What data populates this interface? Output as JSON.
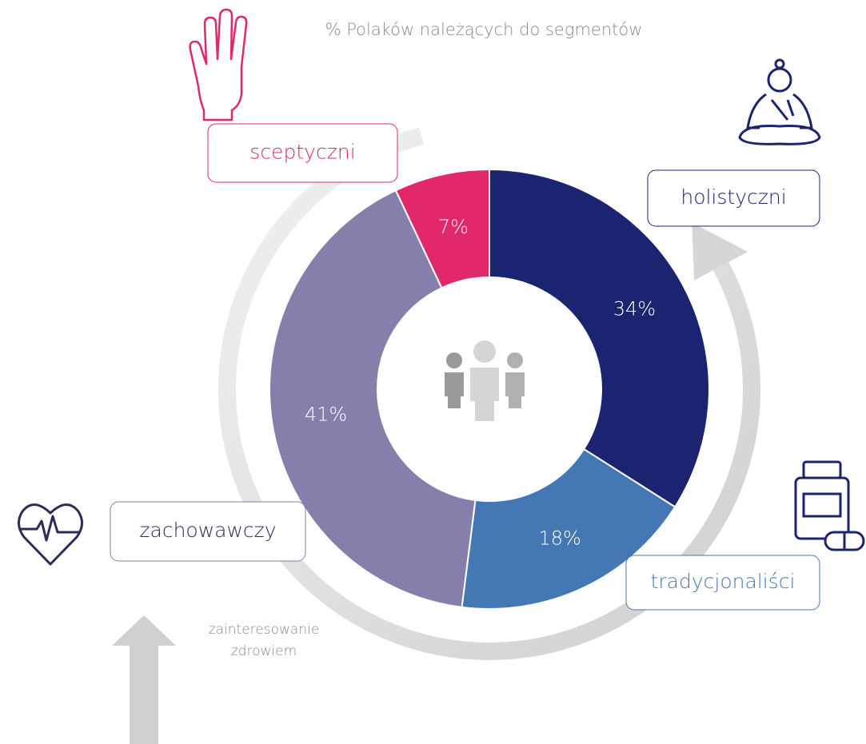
{
  "chart_data": {
    "type": "donut",
    "subtitle": "% Polaków należących do segmentów",
    "categories": [
      "holistyczni",
      "tradycjonaliści",
      "zachowawczy",
      "sceptyczni"
    ],
    "values": [
      34,
      18,
      41,
      7
    ],
    "value_labels": [
      "34%",
      "18%",
      "41%",
      "7%"
    ],
    "colors": [
      "#1b2470",
      "#4478b4",
      "#857fab",
      "#e0286a"
    ],
    "legend_label": [
      "zainteresowanie",
      "zdrowiem"
    ]
  }
}
